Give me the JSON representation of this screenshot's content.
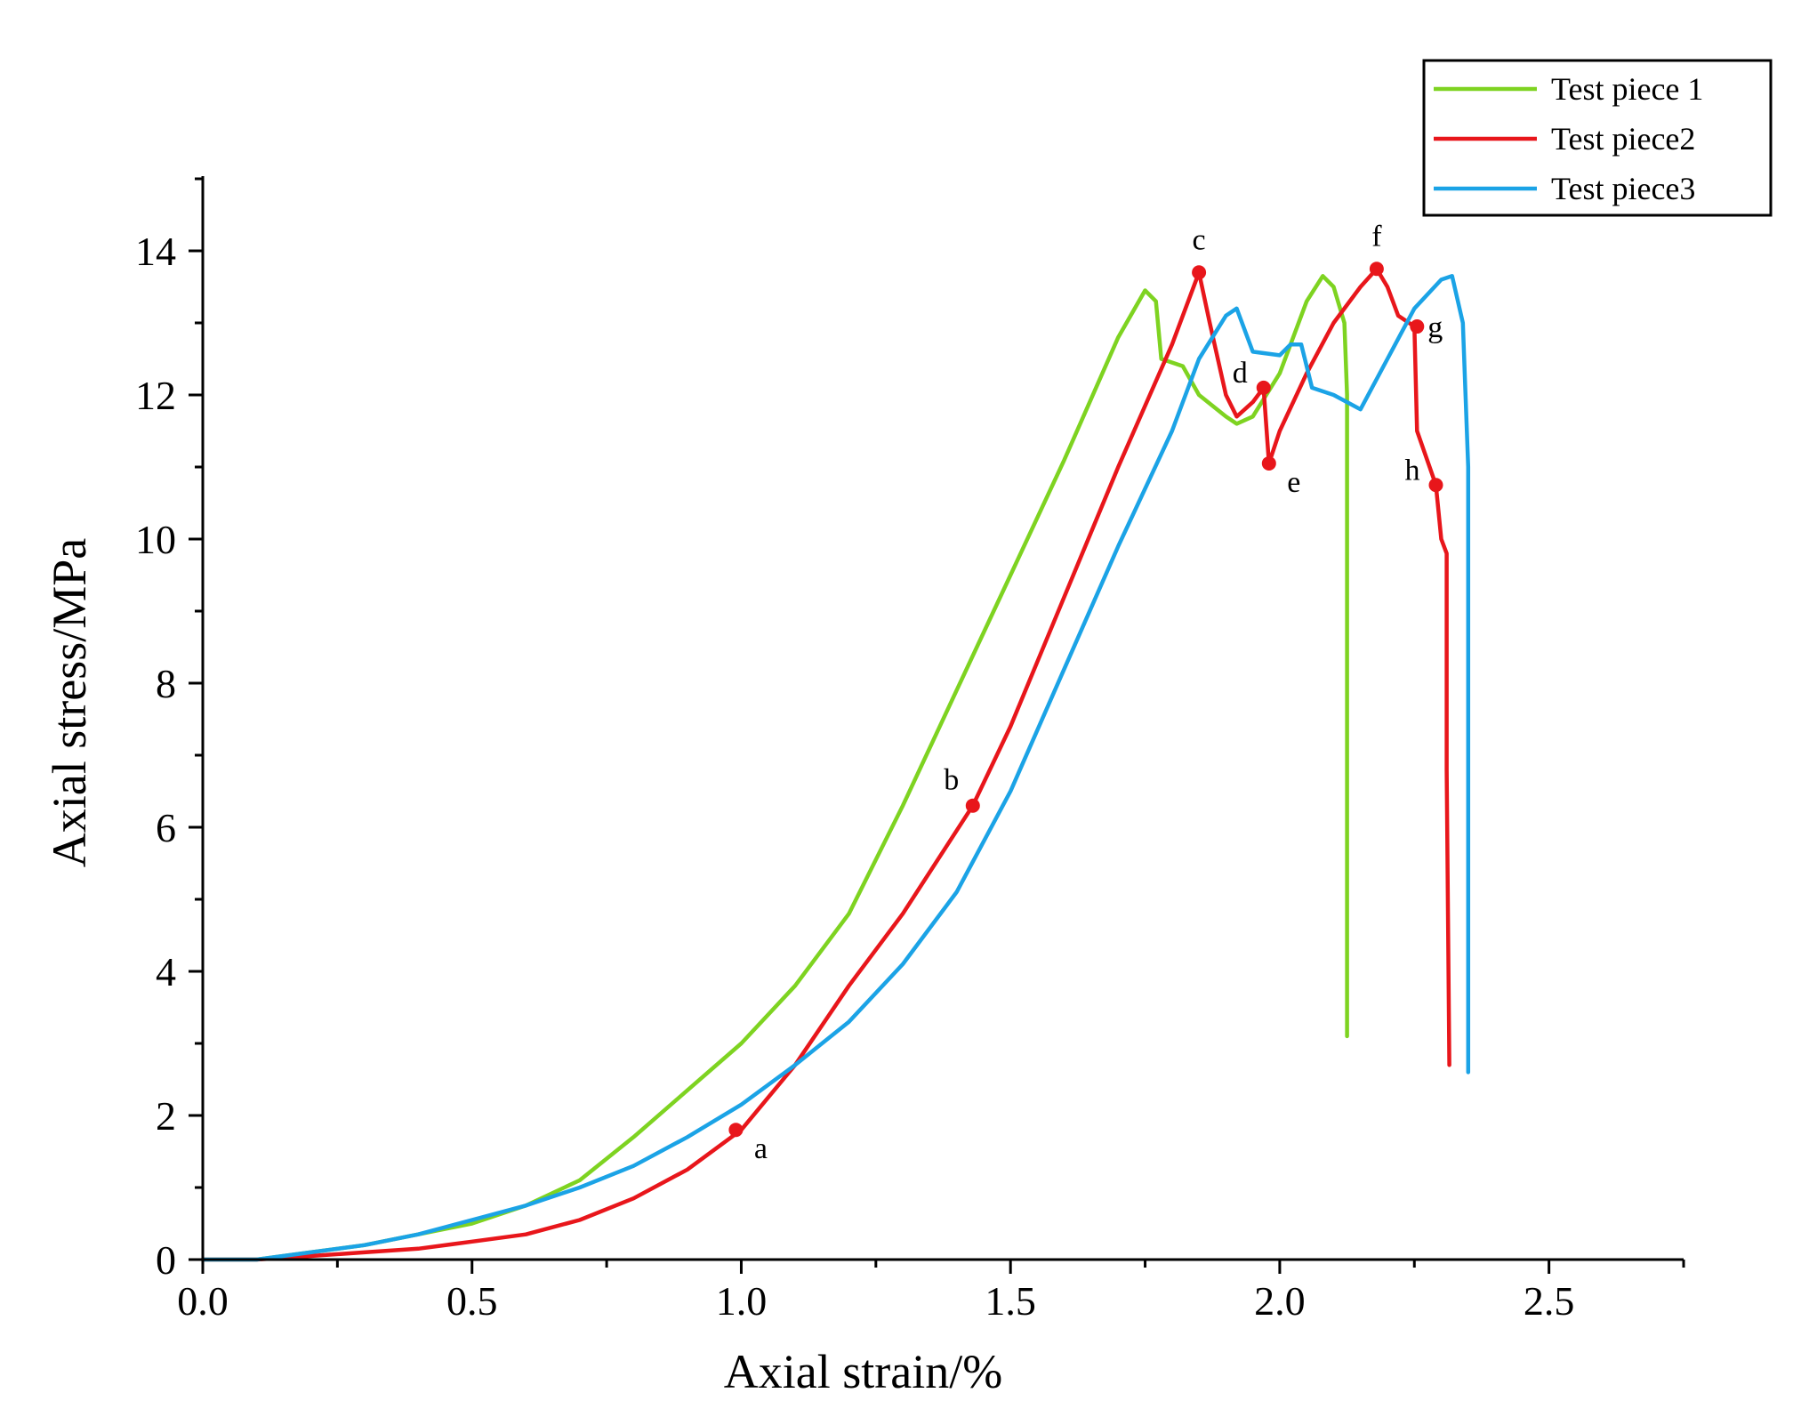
{
  "chart_data": {
    "type": "line",
    "title": "",
    "xlabel": "Axial strain/%",
    "ylabel": "Axial stress/MPa",
    "xlim": [
      0,
      2.75
    ],
    "ylim": [
      0,
      15
    ],
    "grid": false,
    "legend_position": "top-right",
    "x_ticks": [
      {
        "value": 0.0,
        "label": "0.0"
      },
      {
        "value": 0.5,
        "label": "0.5"
      },
      {
        "value": 1.0,
        "label": "1.0"
      },
      {
        "value": 1.5,
        "label": "1.5"
      },
      {
        "value": 2.0,
        "label": "2.0"
      },
      {
        "value": 2.5,
        "label": "2.5"
      }
    ],
    "y_ticks": [
      {
        "value": 0,
        "label": "0"
      },
      {
        "value": 2,
        "label": "2"
      },
      {
        "value": 4,
        "label": "4"
      },
      {
        "value": 6,
        "label": "6"
      },
      {
        "value": 8,
        "label": "8"
      },
      {
        "value": 10,
        "label": "10"
      },
      {
        "value": 12,
        "label": "12"
      },
      {
        "value": 14,
        "label": "14"
      }
    ],
    "series": [
      {
        "name": "Test piece 1",
        "color": "#7ed321",
        "points": [
          [
            0.0,
            0.0
          ],
          [
            0.1,
            0.0
          ],
          [
            0.2,
            0.1
          ],
          [
            0.3,
            0.2
          ],
          [
            0.4,
            0.35
          ],
          [
            0.5,
            0.5
          ],
          [
            0.6,
            0.75
          ],
          [
            0.7,
            1.1
          ],
          [
            0.8,
            1.7
          ],
          [
            0.9,
            2.35
          ],
          [
            1.0,
            3.0
          ],
          [
            1.1,
            3.8
          ],
          [
            1.2,
            4.8
          ],
          [
            1.3,
            6.3
          ],
          [
            1.4,
            7.9
          ],
          [
            1.5,
            9.5
          ],
          [
            1.6,
            11.1
          ],
          [
            1.7,
            12.8
          ],
          [
            1.75,
            13.45
          ],
          [
            1.77,
            13.3
          ],
          [
            1.78,
            12.5
          ],
          [
            1.82,
            12.4
          ],
          [
            1.85,
            12.0
          ],
          [
            1.9,
            11.7
          ],
          [
            1.92,
            11.6
          ],
          [
            1.95,
            11.7
          ],
          [
            2.0,
            12.3
          ],
          [
            2.05,
            13.3
          ],
          [
            2.08,
            13.65
          ],
          [
            2.1,
            13.5
          ],
          [
            2.12,
            13.0
          ],
          [
            2.125,
            12.0
          ],
          [
            2.125,
            6.0
          ],
          [
            2.125,
            3.1
          ]
        ]
      },
      {
        "name": "Test piece2",
        "color": "#e8161b",
        "points": [
          [
            0.0,
            0.0
          ],
          [
            0.1,
            0.0
          ],
          [
            0.2,
            0.05
          ],
          [
            0.3,
            0.1
          ],
          [
            0.4,
            0.15
          ],
          [
            0.5,
            0.25
          ],
          [
            0.6,
            0.35
          ],
          [
            0.7,
            0.55
          ],
          [
            0.8,
            0.85
          ],
          [
            0.9,
            1.25
          ],
          [
            1.0,
            1.8
          ],
          [
            1.1,
            2.7
          ],
          [
            1.2,
            3.8
          ],
          [
            1.3,
            4.8
          ],
          [
            1.43,
            6.3
          ],
          [
            1.5,
            7.4
          ],
          [
            1.6,
            9.2
          ],
          [
            1.7,
            11.0
          ],
          [
            1.8,
            12.7
          ],
          [
            1.85,
            13.7
          ],
          [
            1.87,
            13.0
          ],
          [
            1.9,
            12.0
          ],
          [
            1.92,
            11.7
          ],
          [
            1.95,
            11.9
          ],
          [
            1.97,
            12.1
          ],
          [
            1.98,
            11.05
          ],
          [
            2.0,
            11.5
          ],
          [
            2.05,
            12.3
          ],
          [
            2.1,
            13.0
          ],
          [
            2.15,
            13.5
          ],
          [
            2.18,
            13.75
          ],
          [
            2.2,
            13.5
          ],
          [
            2.22,
            13.1
          ],
          [
            2.25,
            12.95
          ],
          [
            2.255,
            11.5
          ],
          [
            2.29,
            10.75
          ],
          [
            2.3,
            10.0
          ],
          [
            2.31,
            9.8
          ],
          [
            2.31,
            6.8
          ],
          [
            2.315,
            2.7
          ]
        ]
      },
      {
        "name": "Test piece3",
        "color": "#1ba3e6",
        "points": [
          [
            0.0,
            0.0
          ],
          [
            0.1,
            0.0
          ],
          [
            0.2,
            0.1
          ],
          [
            0.3,
            0.2
          ],
          [
            0.4,
            0.35
          ],
          [
            0.5,
            0.55
          ],
          [
            0.6,
            0.75
          ],
          [
            0.7,
            1.0
          ],
          [
            0.8,
            1.3
          ],
          [
            0.9,
            1.7
          ],
          [
            1.0,
            2.15
          ],
          [
            1.1,
            2.7
          ],
          [
            1.2,
            3.3
          ],
          [
            1.3,
            4.1
          ],
          [
            1.4,
            5.1
          ],
          [
            1.5,
            6.5
          ],
          [
            1.6,
            8.2
          ],
          [
            1.7,
            9.9
          ],
          [
            1.8,
            11.5
          ],
          [
            1.85,
            12.5
          ],
          [
            1.9,
            13.1
          ],
          [
            1.92,
            13.2
          ],
          [
            1.95,
            12.6
          ],
          [
            2.0,
            12.55
          ],
          [
            2.02,
            12.7
          ],
          [
            2.04,
            12.7
          ],
          [
            2.06,
            12.1
          ],
          [
            2.1,
            12.0
          ],
          [
            2.15,
            11.8
          ],
          [
            2.2,
            12.5
          ],
          [
            2.25,
            13.2
          ],
          [
            2.3,
            13.6
          ],
          [
            2.32,
            13.65
          ],
          [
            2.34,
            13.0
          ],
          [
            2.35,
            11.0
          ],
          [
            2.35,
            6.0
          ],
          [
            2.35,
            2.6
          ]
        ]
      }
    ],
    "annotations": [
      {
        "label": "a",
        "x": 0.99,
        "y": 1.8,
        "series": "Test piece2",
        "placement": "below-right"
      },
      {
        "label": "b",
        "x": 1.43,
        "y": 6.3,
        "series": "Test piece2",
        "placement": "above-left"
      },
      {
        "label": "c",
        "x": 1.85,
        "y": 13.7,
        "series": "Test piece2",
        "placement": "above"
      },
      {
        "label": "d",
        "x": 1.97,
        "y": 12.1,
        "series": "Test piece2",
        "placement": "left"
      },
      {
        "label": "e",
        "x": 1.98,
        "y": 11.05,
        "series": "Test piece2",
        "placement": "below-right"
      },
      {
        "label": "f",
        "x": 2.18,
        "y": 13.75,
        "series": "Test piece2",
        "placement": "above"
      },
      {
        "label": "g",
        "x": 2.255,
        "y": 12.95,
        "series": "Test piece2",
        "placement": "right"
      },
      {
        "label": "h",
        "x": 2.29,
        "y": 10.75,
        "series": "Test piece2",
        "placement": "left"
      }
    ]
  }
}
